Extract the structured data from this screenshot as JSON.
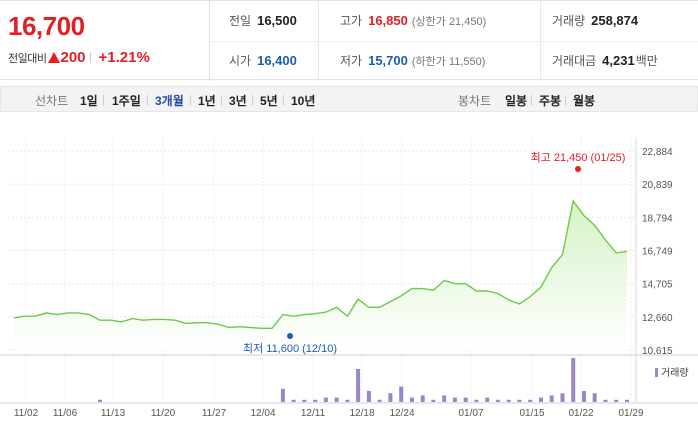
{
  "quote": {
    "price": "16,700",
    "change_label": "전일대비",
    "change_amount": "200",
    "change_percent": "+1.21%",
    "prev_close_label": "전일",
    "prev_close": "16,500",
    "open_label": "시가",
    "open": "16,400",
    "high_label": "고가",
    "high": "16,850",
    "upper_limit": "(상한가 21,450)",
    "low_label": "저가",
    "low": "15,700",
    "lower_limit": "(하한가 11,550)",
    "volume_label": "거래량",
    "volume": "258,874",
    "value_label": "거래대금",
    "value": "4,231",
    "value_unit": "백만"
  },
  "tabs": {
    "line_label": "선차트",
    "line_items": [
      "1일",
      "1주일",
      "3개월",
      "1년",
      "3년",
      "5년",
      "10년"
    ],
    "line_active": "3개월",
    "candle_label": "봉차트",
    "candle_items": [
      "일봉",
      "주봉",
      "월봉"
    ]
  },
  "chart_data": {
    "type": "area",
    "y_ticks": [
      "22,884",
      "20,839",
      "18,794",
      "16,749",
      "14,705",
      "12,660",
      "10,615"
    ],
    "ylim": [
      10615,
      22884
    ],
    "x_tick_labels": [
      "11/02",
      "11/06",
      "11/13",
      "11/20",
      "11/27",
      "12/04",
      "12/11",
      "12/18",
      "12/24",
      "01/07",
      "01/15",
      "01/22",
      "01/29"
    ],
    "price_series": [
      12600,
      12700,
      12700,
      12900,
      12800,
      12900,
      12900,
      12800,
      12450,
      12450,
      12350,
      12550,
      12450,
      12500,
      12500,
      12450,
      12250,
      12300,
      12300,
      12200,
      12000,
      12050,
      12000,
      11950,
      11950,
      12800,
      12700,
      12800,
      12850,
      12950,
      13250,
      12700,
      13750,
      13250,
      13250,
      13600,
      13950,
      14400,
      14400,
      14300,
      14900,
      14700,
      14700,
      14250,
      14250,
      14100,
      13700,
      13450,
      13900,
      14500,
      15700,
      16500,
      19800,
      18900,
      18300,
      17400,
      16600,
      16700
    ],
    "volume_series": [
      0,
      0,
      0,
      0,
      0,
      0,
      0,
      0,
      1,
      0,
      0,
      0,
      0,
      0,
      0,
      0,
      0,
      0,
      0,
      0,
      0,
      0,
      0,
      0,
      0,
      6,
      1,
      1,
      1,
      2,
      2,
      1,
      15,
      5,
      1,
      4,
      7,
      2,
      3,
      1,
      3,
      2,
      2,
      1,
      2,
      1,
      1,
      1,
      1,
      2,
      3,
      4,
      20,
      5,
      4,
      1,
      1,
      1
    ],
    "volume_max": 20,
    "high_annotation": "최고 21,450 (01/25)",
    "low_annotation": "최저 11,600 (12/10)",
    "volume_legend": "거래량",
    "colors": {
      "line": "#6cc94b",
      "area_top": "#d6f2c6",
      "high": "#e31e25",
      "low": "#1b5db3",
      "volume": "#9a86c9"
    }
  }
}
